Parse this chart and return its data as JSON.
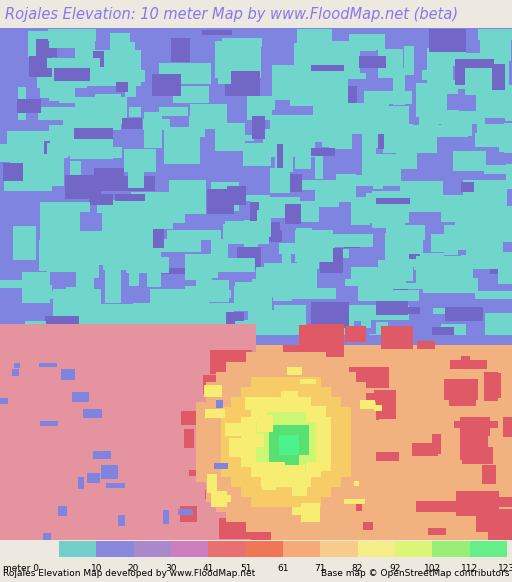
{
  "title": "Rojales Elevation: 10 meter Map by www.FloodMap.net (beta)",
  "title_color": "#8877ee",
  "title_bg": "#ede8e0",
  "title_fontsize": 10.5,
  "colorbar_colors": [
    "#72cfc9",
    "#8888dd",
    "#aa88cc",
    "#cc7ec0",
    "#e87070",
    "#ee7755",
    "#f5aa77",
    "#f5cc88",
    "#f5ee88",
    "#ddf577",
    "#99ee77",
    "#66ee88"
  ],
  "colorbar_values_str": [
    "0",
    "10",
    "20",
    "30",
    "41",
    "51",
    "61",
    "71",
    "82",
    "92",
    "102",
    "112",
    "123"
  ],
  "footer_left": "Rojales Elevation Map developed by www.FloodMap.net",
  "footer_right": "Base map © OpenStreetMap contributors",
  "base_blue": [
    0.5,
    0.52,
    0.88
  ],
  "teal_color": [
    0.44,
    0.84,
    0.8
  ],
  "purple_color": [
    0.45,
    0.4,
    0.78
  ],
  "coral_color": [
    0.9,
    0.58,
    0.62
  ],
  "red_color": [
    0.88,
    0.35,
    0.4
  ],
  "orange_color": [
    0.95,
    0.7,
    0.5
  ],
  "yellow_color": [
    0.97,
    0.93,
    0.45
  ],
  "green_color": [
    0.35,
    0.88,
    0.45
  ],
  "fig_width": 5.12,
  "fig_height": 5.82,
  "dpi": 100
}
